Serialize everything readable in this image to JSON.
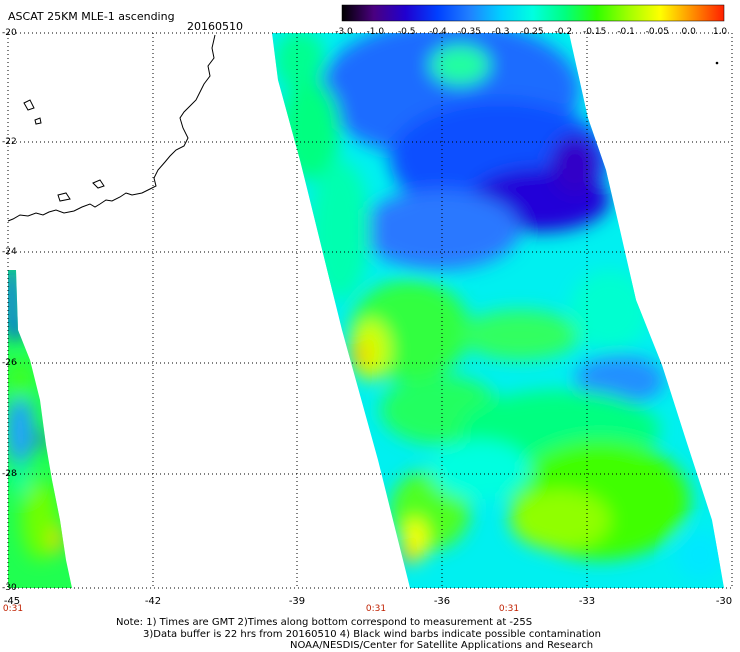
{
  "header": {
    "title": "ASCAT 25KM MLE-1 ascending",
    "date": "20160510"
  },
  "colorbar": {
    "labels": [
      "-3.0",
      "-1.0",
      "-0.5",
      "-0.4",
      "-0.35",
      "-0.3",
      "-0.25",
      "-0.2",
      "-0.15",
      "-0.1",
      "-0.05",
      "0.0",
      "1.0"
    ],
    "colors": [
      "#000000",
      "#4a0080",
      "#2000d0",
      "#0040ff",
      "#2080ff",
      "#00d0ff",
      "#00ffe0",
      "#00ff80",
      "#30ff00",
      "#a0ff00",
      "#ffff00",
      "#ff9000",
      "#ff2000"
    ]
  },
  "axes": {
    "x_ticks": [
      "-45",
      "-42",
      "-39",
      "-36",
      "-33",
      "-30"
    ],
    "y_ticks": [
      "-20",
      "-22",
      "-24",
      "-26",
      "-28",
      "-30"
    ],
    "time_labels": [
      "0:31",
      "0:31",
      "0:31"
    ]
  },
  "notes": {
    "line1": "Note: 1) Times are GMT 2)Times along bottom correspond to measurement at -25S",
    "line2": "3)Data buffer is 22 hrs from 20160510 4) Black wind barbs indicate possible contamination",
    "line3": "NOAA/NESDIS/Center for Satellite Applications and Research"
  }
}
